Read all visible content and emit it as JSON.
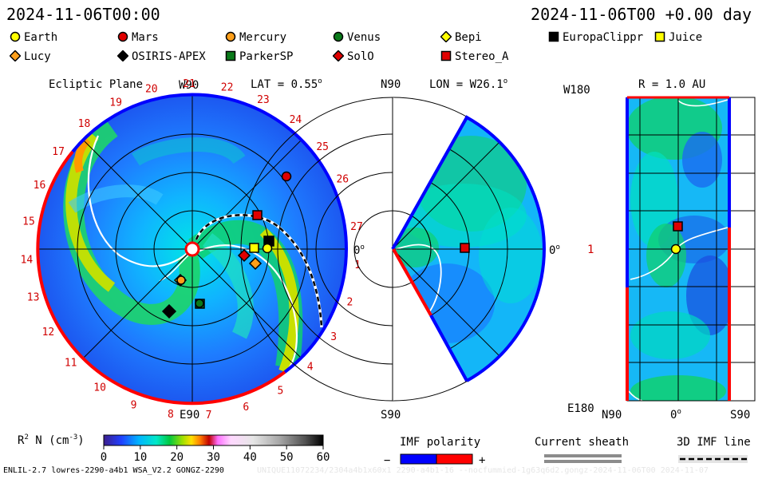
{
  "header": {
    "left": "2024-11-06T00:00",
    "right": "2024-11-06T00 +0.00 day"
  },
  "legend": [
    {
      "name": "Earth",
      "shape": "circle",
      "color": "#ffff00"
    },
    {
      "name": "Mars",
      "shape": "circle",
      "color": "#e00000"
    },
    {
      "name": "Mercury",
      "shape": "circle",
      "color": "#ff9f1a"
    },
    {
      "name": "Venus",
      "shape": "circle",
      "color": "#0a7a1a"
    },
    {
      "name": "Bepi",
      "shape": "diamond",
      "color": "#ffff00"
    },
    {
      "name": "EuropaClippr",
      "shape": "square",
      "color": "#000000"
    },
    {
      "name": "Juice",
      "shape": "square",
      "color": "#ffff00"
    },
    {
      "name": "Lucy",
      "shape": "diamond",
      "color": "#ff9f1a"
    },
    {
      "name": "OSIRIS-APEX",
      "shape": "diamond",
      "color": "#000000"
    },
    {
      "name": "ParkerSP",
      "shape": "square",
      "color": "#0a7a1a"
    },
    {
      "name": "SolO",
      "shape": "diamond",
      "color": "#e00000"
    },
    {
      "name": "Stereo_A",
      "shape": "square",
      "color": "#e00000"
    }
  ],
  "panels": {
    "ecliptic": {
      "title": "Ecliptic Plane",
      "lat_label": "LAT = 0.55",
      "lat_deg": "o",
      "top_label": "W90",
      "bottom_label": "E90",
      "right_label": "0",
      "right_deg": "o",
      "carrington_labels": [
        "1",
        "2",
        "3",
        "4",
        "5",
        "6",
        "7",
        "8",
        "9",
        "10",
        "11",
        "12",
        "13",
        "14",
        "15",
        "16",
        "17",
        "18",
        "19",
        "20",
        "21",
        "22",
        "23",
        "24",
        "25",
        "26",
        "27"
      ]
    },
    "meridional": {
      "lon_label": "LON = W26.1",
      "lon_deg": "o",
      "top_label": "N90",
      "bottom_label": "S90",
      "right_label": "0",
      "right_deg": "o"
    },
    "radial": {
      "r_label": "R = 1.0 AU",
      "top_left_label": "W180",
      "bottom_left_label": "E180",
      "mid_left_label": "1",
      "bottom_axis": [
        "N90",
        "0",
        "S90"
      ],
      "bottom_deg": "o"
    }
  },
  "colorbar": {
    "label_main": "R",
    "label_sup": "2",
    "label_rest": " N (cm",
    "label_exp": "-3",
    "label_end": ")",
    "ticks": [
      "0",
      "10",
      "20",
      "30",
      "40",
      "50",
      "60"
    ],
    "range": [
      0,
      60
    ]
  },
  "imf": {
    "polarity_label": "IMF polarity",
    "minus": "−",
    "plus": "+",
    "negative_color": "#0000ff",
    "positive_color": "#ff0000",
    "current_sheath_label": "Current sheath",
    "imf_line_label": "3D IMF line"
  },
  "footer": {
    "left": "ENLIL-2.7 lowres-2290-a4b1 WSA_V2.2 GONGZ-2290",
    "right": "UNIQUE11072234/2304a4b1x60x1 2290-a4b1-16 --nocfummied-1g63q6d2.gongz-2024-11-06T00    2024-11-07"
  },
  "chart_data": {
    "type": "heatmap",
    "quantity": "R^2 N (cm^-3)",
    "color_range": [
      0,
      60
    ],
    "bodies_plotted": [
      "Earth",
      "Mars",
      "Mercury",
      "Venus",
      "Bepi",
      "EuropaClippr",
      "Juice",
      "Lucy",
      "OSIRIS-APEX",
      "ParkerSP",
      "SolO",
      "Stereo_A"
    ],
    "earth_latitude_deg": 0.55,
    "earth_longitude_deg": -26.1,
    "radial_distance_au": 1.0
  }
}
